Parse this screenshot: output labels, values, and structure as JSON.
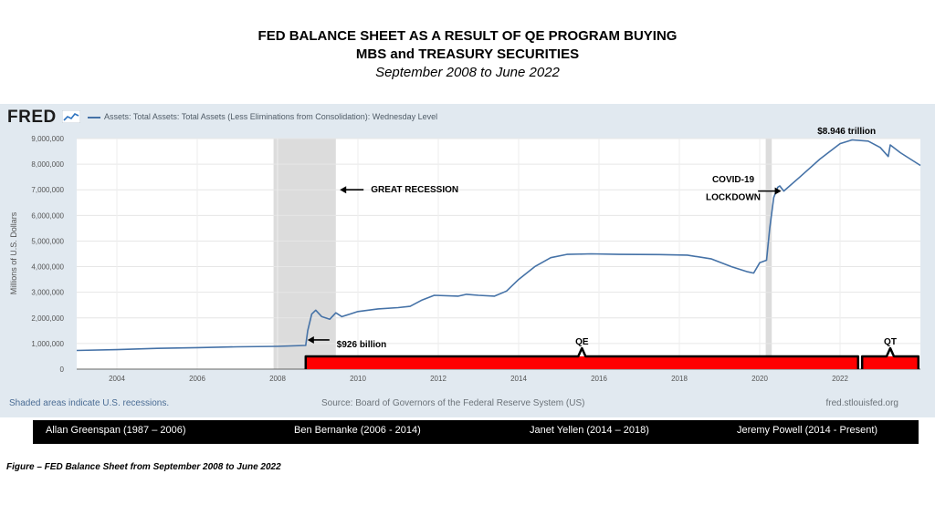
{
  "title": {
    "line1": "FED BALANCE SHEET AS A RESULT OF QE PROGRAM BUYING",
    "line2": "MBS and TREASURY SECURITIES",
    "subtitle": "September 2008 to June 2022"
  },
  "fred": {
    "logo_text": "FRED",
    "logo_icon": "line-chart-icon",
    "series_legend": "Assets: Total Assets: Total Assets (Less Eliminations from Consolidation): Wednesday Level",
    "footer_note": "Shaded areas indicate U.S. recessions.",
    "source": "Source: Board of Governors of the Federal Reserve System (US)",
    "site": "fred.stlouisfed.org"
  },
  "chairs": [
    {
      "label": "Allan Greenspan (1987 – 2006)"
    },
    {
      "label": "Ben Bernanke (2006 - 2014)"
    },
    {
      "label": "Janet Yellen (2014 – 2018)"
    },
    {
      "label": "Jeremy Powell (2014 - Present)"
    }
  ],
  "caption": "Figure  – FED Balance Sheet from September 2008 to June 2022",
  "colors": {
    "line": "#4572a7",
    "recession_shade": "#dcdcdc",
    "program_bar": "#ff0000",
    "panel_bg": "#e1e9f0"
  },
  "chart_data": {
    "type": "line",
    "title": "",
    "xlabel": "",
    "ylabel": "Millions of U.S. Dollars",
    "xlim": [
      2003.0,
      2024.0
    ],
    "ylim": [
      0,
      9000000
    ],
    "grid": true,
    "x_ticks": [
      2004,
      2006,
      2008,
      2010,
      2012,
      2014,
      2016,
      2018,
      2020,
      2022
    ],
    "y_ticks": [
      0,
      1000000,
      2000000,
      3000000,
      4000000,
      5000000,
      6000000,
      7000000,
      8000000,
      9000000
    ],
    "y_tick_labels": [
      "0",
      "1,000,000",
      "2,000,000",
      "3,000,000",
      "4,000,000",
      "5,000,000",
      "6,000,000",
      "7,000,000",
      "8,000,000",
      "9,000,000"
    ],
    "recessions": [
      [
        2007.9,
        2009.45
      ],
      [
        2020.15,
        2020.3
      ]
    ],
    "series": [
      {
        "name": "Assets: Total Assets: Total Assets (Less Eliminations from Consolidation): Wednesday Level",
        "points": [
          [
            2003.0,
            730000
          ],
          [
            2004.0,
            760000
          ],
          [
            2005.0,
            810000
          ],
          [
            2006.0,
            840000
          ],
          [
            2007.0,
            870000
          ],
          [
            2008.0,
            890000
          ],
          [
            2008.7,
            926000
          ],
          [
            2008.75,
            1500000
          ],
          [
            2008.85,
            2150000
          ],
          [
            2008.95,
            2300000
          ],
          [
            2009.1,
            2050000
          ],
          [
            2009.3,
            1950000
          ],
          [
            2009.45,
            2200000
          ],
          [
            2009.6,
            2050000
          ],
          [
            2009.8,
            2150000
          ],
          [
            2010.0,
            2250000
          ],
          [
            2010.5,
            2350000
          ],
          [
            2011.0,
            2400000
          ],
          [
            2011.3,
            2450000
          ],
          [
            2011.6,
            2700000
          ],
          [
            2011.9,
            2880000
          ],
          [
            2012.5,
            2850000
          ],
          [
            2012.7,
            2920000
          ],
          [
            2013.0,
            2880000
          ],
          [
            2013.4,
            2850000
          ],
          [
            2013.7,
            3050000
          ],
          [
            2014.0,
            3500000
          ],
          [
            2014.4,
            4000000
          ],
          [
            2014.8,
            4350000
          ],
          [
            2015.2,
            4480000
          ],
          [
            2015.8,
            4500000
          ],
          [
            2016.5,
            4480000
          ],
          [
            2017.5,
            4470000
          ],
          [
            2018.2,
            4450000
          ],
          [
            2018.8,
            4300000
          ],
          [
            2019.3,
            4000000
          ],
          [
            2019.7,
            3800000
          ],
          [
            2019.85,
            3750000
          ],
          [
            2020.0,
            4150000
          ],
          [
            2020.17,
            4250000
          ],
          [
            2020.25,
            5500000
          ],
          [
            2020.35,
            6700000
          ],
          [
            2020.45,
            7100000
          ],
          [
            2020.5,
            7150000
          ],
          [
            2020.6,
            6950000
          ],
          [
            2021.0,
            7500000
          ],
          [
            2021.5,
            8200000
          ],
          [
            2022.0,
            8800000
          ],
          [
            2022.3,
            8946000
          ],
          [
            2022.7,
            8900000
          ],
          [
            2023.0,
            8650000
          ],
          [
            2023.2,
            8300000
          ],
          [
            2023.25,
            8750000
          ],
          [
            2023.5,
            8450000
          ],
          [
            2024.0,
            7950000
          ]
        ]
      }
    ],
    "programs": [
      {
        "name": "QE",
        "start": 2008.7,
        "end": 2022.45
      },
      {
        "name": "QT",
        "start": 2022.55,
        "end": 2023.95
      }
    ],
    "annotations": [
      {
        "text": "GREAT RECESSION",
        "x": 2008.8,
        "y": 7000000
      },
      {
        "text": "$926 billion",
        "x": 2008.7,
        "y": 926000
      },
      {
        "text": "COVID-19",
        "x": 2020.0,
        "y": 7250000
      },
      {
        "text": "LOCKDOWN",
        "x": 2020.0,
        "y": 6750000
      },
      {
        "text": "$8.946 trillion",
        "x": 2022.3,
        "y": 8946000
      }
    ]
  }
}
